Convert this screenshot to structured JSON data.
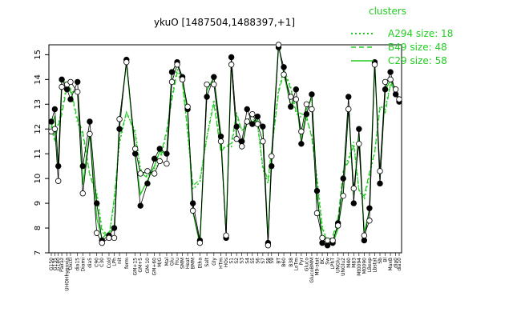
{
  "chart_data": {
    "type": "line",
    "title": "ykuO [1487504,1488397,+1]",
    "xlabel": "",
    "ylabel": "",
    "ylim": [
      7,
      15.4
    ],
    "yticks": [
      7,
      8,
      9,
      10,
      11,
      12,
      13,
      14,
      15
    ],
    "legend": {
      "position": "top-right",
      "title": "clusters",
      "entries": [
        {
          "label": "A294 size: 18",
          "style": "dotted",
          "color": "#22cc22"
        },
        {
          "label": "B49 size: 48",
          "style": "dashed",
          "color": "#22cc22"
        },
        {
          "label": "C29 size: 58",
          "style": "solid",
          "color": "#22cc22"
        }
      ]
    },
    "colors": {
      "series": "#000000",
      "cluster": "#22cc22"
    },
    "categories": [
      "G150",
      "G135",
      "G180",
      "Pairaz",
      "UHOHhypoxia",
      "Oxctl",
      "dia15",
      "Diami",
      "dia5",
      "C90",
      "C30",
      "Cold",
      "LPh",
      "nit",
      "ferm",
      "GM+15",
      "GM+5",
      "GM-10",
      "GM+60",
      "M/G",
      "Mal",
      "Glu",
      "Fru",
      "SMM",
      "Heat",
      "BMM",
      "Etha",
      "Salt",
      "Gly",
      "HTm",
      "HOs",
      "S1",
      "S2",
      "S3",
      "S4",
      "S5",
      "S6",
      "S7",
      "S8",
      "S9",
      "BT",
      "B60",
      "B38",
      "LoTm",
      "Pyr",
      "Gluco",
      "GlucoBMM",
      "M9-stat",
      "BC",
      "Sw",
      "LPhT",
      "UNGlu",
      "UNGlu2",
      "M40",
      "M83",
      "Mt0094",
      "M0090",
      "LBexp",
      "Lbstat",
      "Sb",
      "Bl",
      "MaxB",
      "dia0",
      "dia10"
    ],
    "x": [
      1,
      3,
      5,
      7,
      10,
      12,
      16,
      19,
      23,
      27,
      30,
      34,
      37,
      40,
      44,
      49,
      52,
      56,
      60,
      63,
      67,
      70,
      73,
      76,
      79,
      82,
      86,
      90,
      94,
      98,
      101,
      104,
      107,
      110,
      113,
      116,
      119,
      122,
      125,
      127,
      131,
      134,
      138,
      141,
      144,
      147,
      150,
      153,
      156,
      159,
      162,
      165,
      168,
      171,
      174,
      177,
      180,
      183,
      186,
      189,
      192,
      195,
      198,
      200
    ],
    "series": [
      {
        "values": [
          12.3,
          12.8,
          10.5,
          14.0,
          13.6,
          13.2,
          13.9,
          10.5,
          12.3,
          9.0,
          7.5,
          7.7,
          8.0,
          12.0,
          14.8,
          11.0,
          8.9,
          9.8,
          10.8,
          11.2,
          11.0,
          14.3,
          14.7,
          14.1,
          12.8,
          9.0,
          7.5,
          13.3,
          14.1,
          11.7,
          7.6,
          14.9,
          12.1,
          11.5,
          12.8,
          12.2,
          12.5,
          12.1,
          7.4,
          10.5,
          15.3,
          14.5,
          12.9,
          13.6,
          11.4,
          12.6,
          13.4,
          9.5,
          7.4,
          7.3,
          7.4,
          8.2,
          10.0,
          13.3,
          9.0,
          12.0,
          7.5,
          8.8,
          14.7,
          9.8,
          13.6,
          14.3,
          13.4,
          13.1
        ]
      },
      {
        "values": [
          11.9,
          12.0,
          9.9,
          13.7,
          13.8,
          13.9,
          13.5,
          9.4,
          11.8,
          7.8,
          7.4,
          7.6,
          7.6,
          12.4,
          14.7,
          11.2,
          10.2,
          10.3,
          10.2,
          10.7,
          10.6,
          13.9,
          14.6,
          14.0,
          12.9,
          8.7,
          7.4,
          13.8,
          13.8,
          11.5,
          7.7,
          14.6,
          11.6,
          11.3,
          12.3,
          12.6,
          12.2,
          11.5,
          7.3,
          10.9,
          15.4,
          14.2,
          13.3,
          13.2,
          11.9,
          13.0,
          12.8,
          8.6,
          7.6,
          7.5,
          7.5,
          8.1,
          9.3,
          12.8,
          9.6,
          11.4,
          7.7,
          8.3,
          14.6,
          10.3,
          13.9,
          14.0,
          13.6,
          13.2
        ]
      }
    ]
  }
}
